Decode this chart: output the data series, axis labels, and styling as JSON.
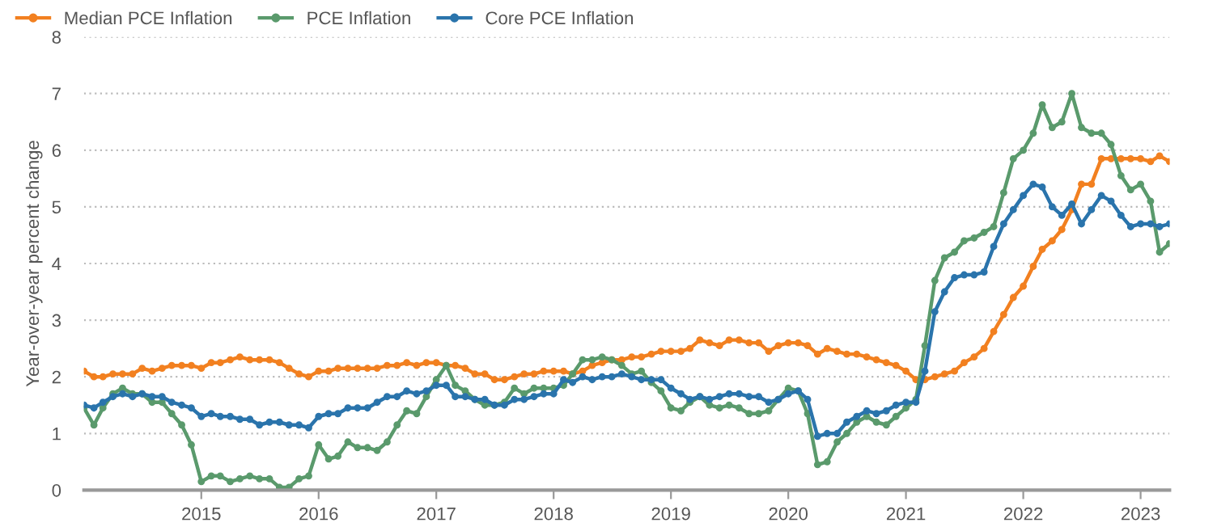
{
  "chart_data": {
    "type": "line",
    "ylabel": "Year-over-year percent change",
    "x": [
      "2014-01",
      "2014-02",
      "2014-03",
      "2014-04",
      "2014-05",
      "2014-06",
      "2014-07",
      "2014-08",
      "2014-09",
      "2014-10",
      "2014-11",
      "2014-12",
      "2015-01",
      "2015-02",
      "2015-03",
      "2015-04",
      "2015-05",
      "2015-06",
      "2015-07",
      "2015-08",
      "2015-09",
      "2015-10",
      "2015-11",
      "2015-12",
      "2016-01",
      "2016-02",
      "2016-03",
      "2016-04",
      "2016-05",
      "2016-06",
      "2016-07",
      "2016-08",
      "2016-09",
      "2016-10",
      "2016-11",
      "2016-12",
      "2017-01",
      "2017-02",
      "2017-03",
      "2017-04",
      "2017-05",
      "2017-06",
      "2017-07",
      "2017-08",
      "2017-09",
      "2017-10",
      "2017-11",
      "2017-12",
      "2018-01",
      "2018-02",
      "2018-03",
      "2018-04",
      "2018-05",
      "2018-06",
      "2018-07",
      "2018-08",
      "2018-09",
      "2018-10",
      "2018-11",
      "2018-12",
      "2019-01",
      "2019-02",
      "2019-03",
      "2019-04",
      "2019-05",
      "2019-06",
      "2019-07",
      "2019-08",
      "2019-09",
      "2019-10",
      "2019-11",
      "2019-12",
      "2020-01",
      "2020-02",
      "2020-03",
      "2020-04",
      "2020-05",
      "2020-06",
      "2020-07",
      "2020-08",
      "2020-09",
      "2020-10",
      "2020-11",
      "2020-12",
      "2021-01",
      "2021-02",
      "2021-03",
      "2021-04",
      "2021-05",
      "2021-06",
      "2021-07",
      "2021-08",
      "2021-09",
      "2021-10",
      "2021-11",
      "2021-12",
      "2022-01",
      "2022-02",
      "2022-03",
      "2022-04",
      "2022-05",
      "2022-06",
      "2022-07",
      "2022-08",
      "2022-09",
      "2022-10",
      "2022-11",
      "2022-12",
      "2023-01",
      "2023-02",
      "2023-03",
      "2023-04"
    ],
    "series": [
      {
        "name": "Median PCE Inflation",
        "color": "#f28020",
        "values": [
          2.1,
          2.0,
          2.0,
          2.05,
          2.05,
          2.05,
          2.15,
          2.1,
          2.15,
          2.2,
          2.2,
          2.2,
          2.15,
          2.25,
          2.25,
          2.3,
          2.35,
          2.3,
          2.3,
          2.3,
          2.25,
          2.15,
          2.05,
          2.0,
          2.1,
          2.1,
          2.15,
          2.15,
          2.15,
          2.15,
          2.15,
          2.2,
          2.2,
          2.25,
          2.2,
          2.25,
          2.25,
          2.2,
          2.2,
          2.15,
          2.05,
          2.05,
          1.95,
          1.95,
          2.0,
          2.05,
          2.05,
          2.1,
          2.1,
          2.1,
          2.05,
          2.1,
          2.2,
          2.25,
          2.3,
          2.3,
          2.35,
          2.35,
          2.4,
          2.45,
          2.45,
          2.45,
          2.5,
          2.65,
          2.6,
          2.55,
          2.65,
          2.65,
          2.6,
          2.6,
          2.45,
          2.55,
          2.6,
          2.6,
          2.55,
          2.4,
          2.5,
          2.45,
          2.4,
          2.4,
          2.35,
          2.3,
          2.25,
          2.2,
          2.1,
          1.95,
          1.95,
          2.0,
          2.05,
          2.1,
          2.25,
          2.35,
          2.5,
          2.8,
          3.1,
          3.4,
          3.6,
          3.95,
          4.25,
          4.4,
          4.6,
          4.95,
          5.4,
          5.4,
          5.85,
          5.85,
          5.85,
          5.85,
          5.85,
          5.8,
          5.9,
          5.8
        ]
      },
      {
        "name": "PCE Inflation",
        "color": "#5a9a6c",
        "values": [
          1.45,
          1.15,
          1.45,
          1.7,
          1.8,
          1.7,
          1.7,
          1.55,
          1.55,
          1.35,
          1.15,
          0.8,
          0.15,
          0.25,
          0.25,
          0.15,
          0.2,
          0.25,
          0.2,
          0.2,
          0.05,
          0.05,
          0.2,
          0.25,
          0.8,
          0.55,
          0.6,
          0.85,
          0.75,
          0.75,
          0.7,
          0.85,
          1.15,
          1.4,
          1.35,
          1.65,
          1.95,
          2.2,
          1.85,
          1.75,
          1.6,
          1.5,
          1.5,
          1.55,
          1.8,
          1.7,
          1.8,
          1.8,
          1.8,
          1.85,
          2.05,
          2.3,
          2.3,
          2.35,
          2.3,
          2.2,
          2.05,
          2.1,
          1.9,
          1.75,
          1.45,
          1.4,
          1.55,
          1.65,
          1.5,
          1.45,
          1.5,
          1.45,
          1.35,
          1.35,
          1.4,
          1.6,
          1.8,
          1.75,
          1.35,
          0.45,
          0.5,
          0.85,
          1.0,
          1.2,
          1.3,
          1.2,
          1.15,
          1.3,
          1.45,
          1.6,
          2.55,
          3.7,
          4.1,
          4.2,
          4.4,
          4.45,
          4.55,
          4.65,
          5.25,
          5.85,
          6.0,
          6.3,
          6.8,
          6.4,
          6.5,
          7.0,
          6.4,
          6.3,
          6.3,
          6.1,
          5.55,
          5.3,
          5.4,
          5.1,
          4.2,
          4.35
        ]
      },
      {
        "name": "Core PCE Inflation",
        "color": "#2a74ac",
        "values": [
          1.5,
          1.45,
          1.55,
          1.65,
          1.7,
          1.65,
          1.7,
          1.65,
          1.65,
          1.55,
          1.5,
          1.45,
          1.3,
          1.35,
          1.3,
          1.3,
          1.25,
          1.25,
          1.15,
          1.2,
          1.2,
          1.15,
          1.15,
          1.1,
          1.3,
          1.35,
          1.35,
          1.45,
          1.45,
          1.45,
          1.55,
          1.65,
          1.65,
          1.75,
          1.7,
          1.75,
          1.85,
          1.85,
          1.65,
          1.65,
          1.6,
          1.6,
          1.5,
          1.5,
          1.6,
          1.6,
          1.65,
          1.7,
          1.7,
          1.95,
          1.9,
          2.0,
          1.95,
          2.0,
          2.0,
          2.05,
          2.0,
          1.95,
          1.95,
          1.95,
          1.8,
          1.7,
          1.6,
          1.65,
          1.6,
          1.65,
          1.7,
          1.7,
          1.65,
          1.65,
          1.55,
          1.6,
          1.7,
          1.75,
          1.6,
          0.95,
          1.0,
          1.0,
          1.2,
          1.3,
          1.4,
          1.35,
          1.4,
          1.5,
          1.55,
          1.55,
          2.1,
          3.15,
          3.5,
          3.75,
          3.8,
          3.8,
          3.85,
          4.3,
          4.7,
          4.95,
          5.2,
          5.4,
          5.35,
          5.0,
          4.85,
          5.05,
          4.7,
          4.95,
          5.2,
          5.1,
          4.85,
          4.65,
          4.7,
          4.7,
          4.65,
          4.7
        ]
      }
    ],
    "xlim": [
      "2014-01",
      "2023-04"
    ],
    "xticks": [
      {
        "value": "2015-01",
        "label": "2015"
      },
      {
        "value": "2016-01",
        "label": "2016"
      },
      {
        "value": "2017-01",
        "label": "2017"
      },
      {
        "value": "2018-01",
        "label": "2018"
      },
      {
        "value": "2019-01",
        "label": "2019"
      },
      {
        "value": "2020-01",
        "label": "2020"
      },
      {
        "value": "2021-01",
        "label": "2021"
      },
      {
        "value": "2022-01",
        "label": "2022"
      },
      {
        "value": "2023-01",
        "label": "2023"
      }
    ],
    "ylim": [
      0,
      8
    ],
    "yticks": [
      0,
      1,
      2,
      3,
      4,
      5,
      6,
      7,
      8
    ],
    "grid": "y",
    "legend": "top left",
    "marker": "circle",
    "line_style": "solid"
  }
}
